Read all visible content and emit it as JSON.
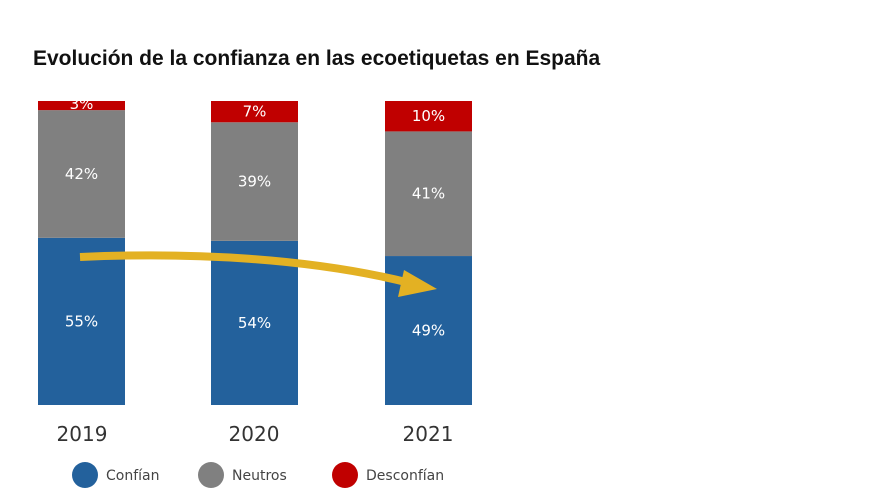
{
  "chart_data": {
    "type": "bar",
    "stacked": true,
    "title": "Evolución de la confianza en las ecoetiquetas en España",
    "categories": [
      "2019",
      "2020",
      "2021"
    ],
    "series": [
      {
        "name": "Confían",
        "values": [
          55,
          54,
          49
        ],
        "labels": [
          "55%",
          "54%",
          "49%"
        ],
        "color": "#23619C"
      },
      {
        "name": "Neutros",
        "values": [
          42,
          39,
          41
        ],
        "labels": [
          "42%",
          "39%",
          "41%"
        ],
        "color": "#808080"
      },
      {
        "name": "Desconfían",
        "values": [
          3,
          7,
          10
        ],
        "labels": [
          "3%",
          "7%",
          "10%"
        ],
        "color": "#C00000"
      }
    ],
    "ylim": [
      0,
      100
    ],
    "legend": "bottom",
    "annotation": {
      "type": "arrow",
      "from": "2019",
      "to": "2021",
      "color": "#E3B123"
    }
  }
}
